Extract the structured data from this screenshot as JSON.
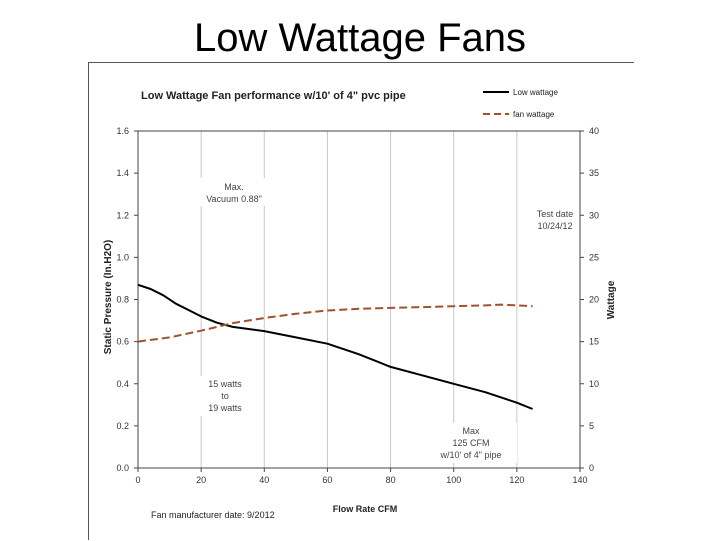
{
  "slide": {
    "title": "Low Wattage Fans"
  },
  "chart_data": {
    "type": "line",
    "title": "Low Wattage Fan performance  w/10' of 4\" pvc pipe",
    "xlabel": "Flow Rate CFM",
    "ylabel_left": "Static Pressure (In.H2O)",
    "ylabel_right": "Wattage",
    "xlim": [
      0,
      140
    ],
    "ylim_left": [
      0,
      1.6
    ],
    "ylim_right": [
      0,
      40
    ],
    "x_ticks": [
      "0",
      "20",
      "40",
      "60",
      "80",
      "100",
      "120",
      "140"
    ],
    "y_left_ticks": [
      "0.0",
      "0.2",
      "0.4",
      "0.6",
      "0.8",
      "1.0",
      "1.2",
      "1.4",
      "1.6"
    ],
    "y_right_ticks": [
      "0",
      "5",
      "10",
      "15",
      "20",
      "25",
      "30",
      "35",
      "40"
    ],
    "grid": "vertical",
    "legend_position": "top-right",
    "series": [
      {
        "name": "Low wattage",
        "axis": "left",
        "color": "#000000",
        "dash": "solid",
        "points": [
          [
            0,
            0.87
          ],
          [
            4,
            0.85
          ],
          [
            8,
            0.82
          ],
          [
            12,
            0.78
          ],
          [
            16,
            0.75
          ],
          [
            20,
            0.72
          ],
          [
            25,
            0.69
          ],
          [
            30,
            0.67
          ],
          [
            40,
            0.65
          ],
          [
            50,
            0.62
          ],
          [
            60,
            0.59
          ],
          [
            70,
            0.54
          ],
          [
            80,
            0.48
          ],
          [
            90,
            0.44
          ],
          [
            100,
            0.4
          ],
          [
            110,
            0.36
          ],
          [
            120,
            0.31
          ],
          [
            125,
            0.28
          ]
        ]
      },
      {
        "name": "fan wattage",
        "axis": "right",
        "color": "#A0522D",
        "dash": "dashed",
        "points": [
          [
            0,
            15
          ],
          [
            10,
            15.5
          ],
          [
            20,
            16.3
          ],
          [
            30,
            17.2
          ],
          [
            40,
            17.8
          ],
          [
            50,
            18.3
          ],
          [
            60,
            18.7
          ],
          [
            70,
            18.9
          ],
          [
            80,
            19
          ],
          [
            90,
            19.1
          ],
          [
            100,
            19.2
          ],
          [
            110,
            19.3
          ],
          [
            115,
            19.4
          ],
          [
            120,
            19.3
          ],
          [
            125,
            19.2
          ]
        ]
      }
    ],
    "annotations": {
      "max_vacuum": [
        "Max.",
        "Vacuum 0.88\""
      ],
      "test_date": [
        "Test date",
        "10/24/12"
      ],
      "watts_range": [
        "15 watts",
        "to",
        "19 watts"
      ],
      "max_cfm": [
        "Max",
        "125 CFM",
        "w/10' of 4\" pipe"
      ],
      "manufacturer_date": "Fan manufacturer date: 9/2012"
    }
  }
}
